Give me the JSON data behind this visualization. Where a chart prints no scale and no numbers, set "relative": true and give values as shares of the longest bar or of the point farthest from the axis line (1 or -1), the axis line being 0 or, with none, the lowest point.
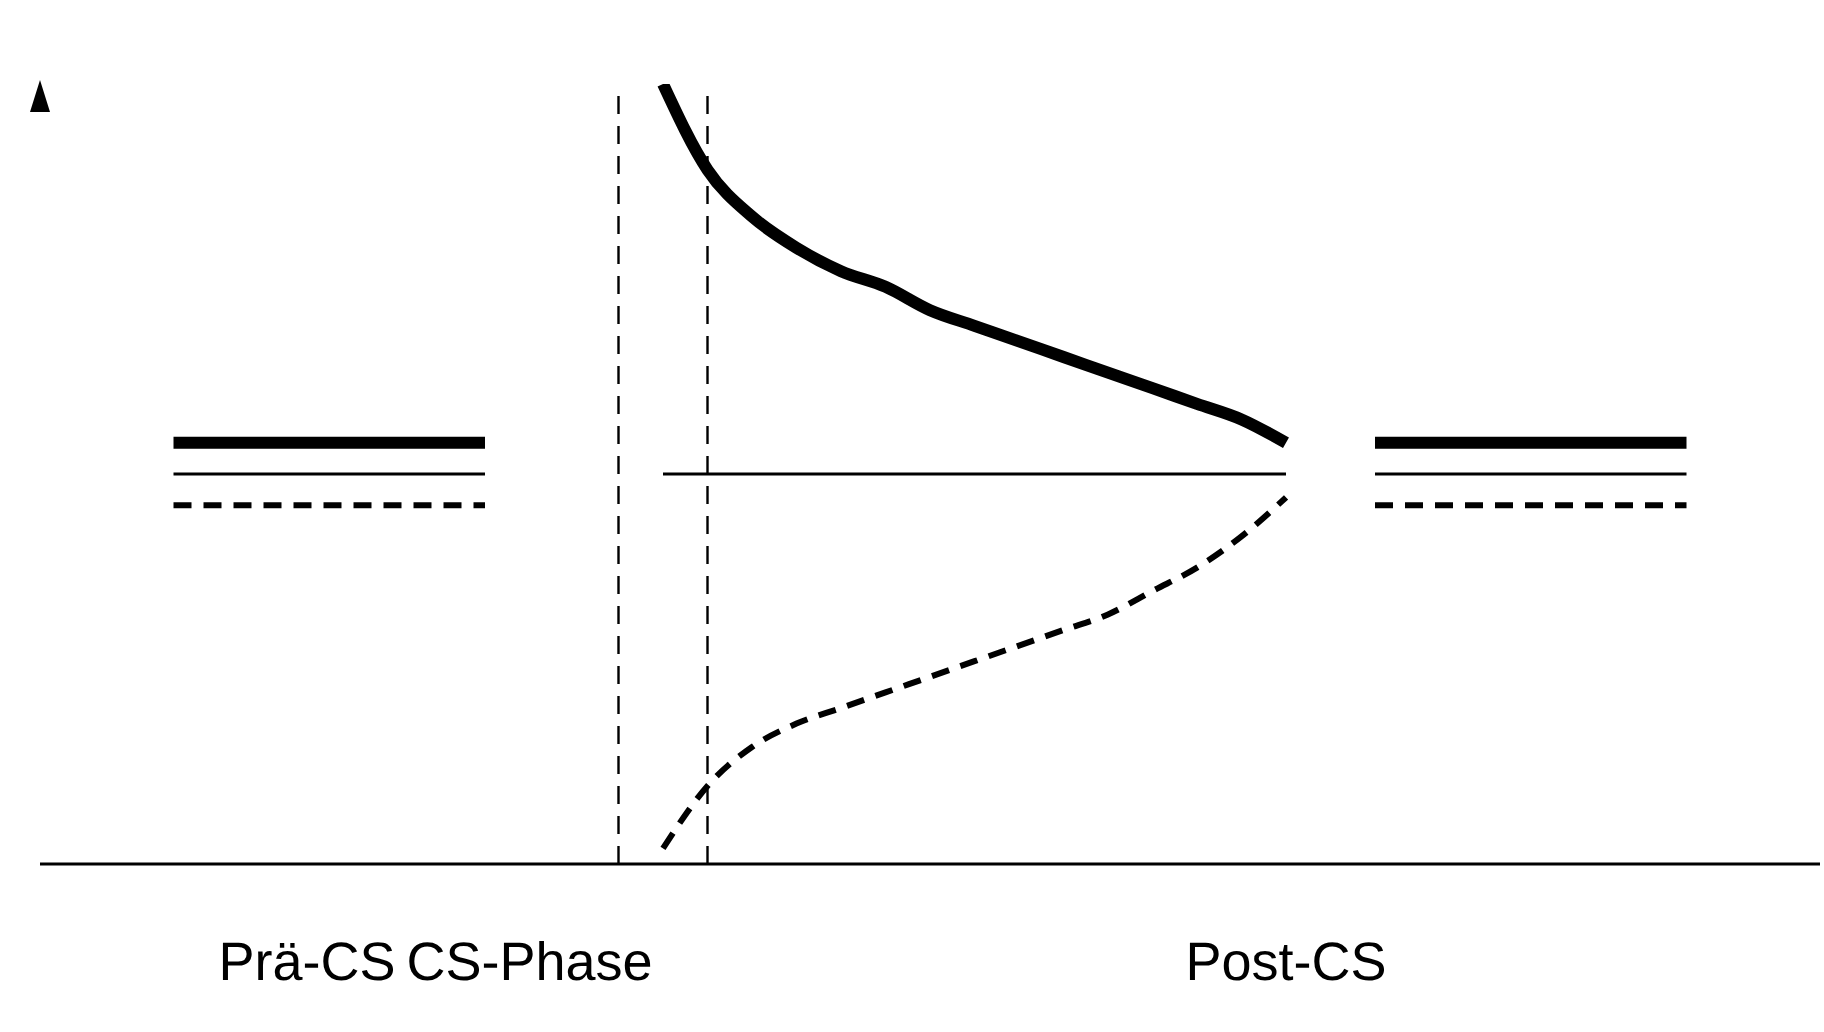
{
  "chart_data": {
    "type": "line",
    "relative": true,
    "marker": "none",
    "line_style": "solid",
    "categories": [
      null,
      null,
      null,
      null,
      null,
      null,
      "Prä-CS",
      null,
      null,
      null,
      null,
      "CS-Phase",
      null,
      null,
      null,
      null,
      null,
      null,
      null,
      null,
      null,
      null,
      null,
      null,
      null,
      null,
      null,
      null,
      "Post-CS",
      null,
      null,
      null,
      null,
      null,
      null,
      null,
      null,
      null,
      null,
      null,
      null
    ],
    "series": [
      {
        "color": "#000000",
        "values": [
          null,
          null,
          null,
          0.54,
          0.54,
          0.54,
          0.54,
          0.54,
          0.54,
          0.54,
          0.54,
          null,
          null,
          null,
          1,
          0.89,
          0.83,
          0.79,
          0.76,
          0.74,
          0.71,
          0.69,
          0.67,
          0.65,
          0.63,
          0.61,
          0.59,
          0.57,
          0.54,
          null,
          0.54,
          0.54,
          0.54,
          0.54,
          0.54,
          0.54,
          0.54,
          0.54,
          null,
          null,
          null
        ]
      },
      {
        "color": "#000000",
        "values": [
          null,
          null,
          null,
          0.5,
          0.5,
          0.5,
          0.5,
          0.5,
          0.5,
          0.5,
          0.5,
          null,
          null,
          null,
          0.5,
          0.5,
          0.5,
          0.5,
          0.5,
          0.5,
          0.5,
          0.5,
          0.5,
          0.5,
          0.5,
          0.5,
          0.5,
          0.5,
          0.5,
          null,
          0.5,
          0.5,
          0.5,
          0.5,
          0.5,
          0.5,
          0.5,
          0.5,
          null,
          null,
          null
        ]
      },
      {
        "color": "#000000",
        "line_style": "dashed",
        "values": [
          null,
          null,
          null,
          0.46,
          0.46,
          0.46,
          0.46,
          0.46,
          0.46,
          0.46,
          0.46,
          null,
          null,
          null,
          0.02,
          0.1,
          0.15,
          0.18,
          0.2,
          0.22,
          0.24,
          0.26,
          0.28,
          0.3,
          0.32,
          0.35,
          0.38,
          0.42,
          0.47,
          null,
          0.46,
          0.46,
          0.46,
          0.46,
          0.46,
          0.46,
          0.46,
          0.46,
          null,
          null,
          null
        ]
      }
    ]
  }
}
